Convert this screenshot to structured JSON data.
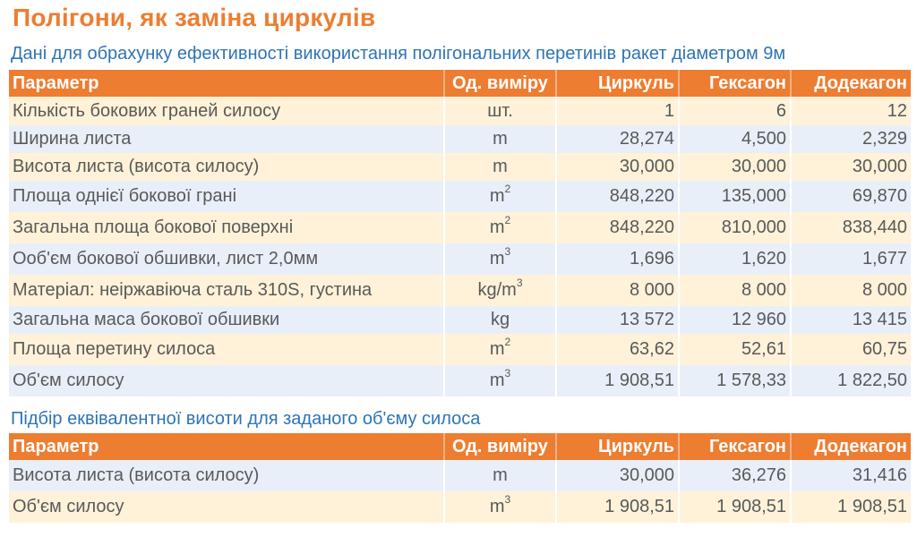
{
  "title": "Полігони, як заміна циркулів",
  "table1": {
    "subtitle": "Дані для обрахунку ефективності використання полігональних перетинів ракет діаметром 9м",
    "headers": [
      "Параметр",
      "Од. виміру",
      "Циркуль",
      "Гексагон",
      "Додекагон"
    ],
    "rows": [
      {
        "param": "Кількість бокових граней силосу",
        "unit": "шт.",
        "sup": "",
        "circle": "1",
        "hexagon": "6",
        "dodecagon": "12"
      },
      {
        "param": "Ширина листа",
        "unit": "m",
        "sup": "",
        "circle": "28,274",
        "hexagon": "4,500",
        "dodecagon": "2,329"
      },
      {
        "param": "Висота листа (висота силосу)",
        "unit": "m",
        "sup": "",
        "circle": "30,000",
        "hexagon": "30,000",
        "dodecagon": "30,000"
      },
      {
        "param": "Площа однієї бокової грані",
        "unit": "m",
        "sup": "2",
        "circle": "848,220",
        "hexagon": "135,000",
        "dodecagon": "69,870"
      },
      {
        "param": "Загальна площа бокової поверхні",
        "unit": "m",
        "sup": "2",
        "circle": "848,220",
        "hexagon": "810,000",
        "dodecagon": "838,440"
      },
      {
        "param": "Ооб'єм бокової обшивки, лист 2,0мм",
        "unit": "m",
        "sup": "3",
        "circle": "1,696",
        "hexagon": "1,620",
        "dodecagon": "1,677"
      },
      {
        "param": "Матеріал: неіржавіюча сталь 310S, густина",
        "unit": "kg/m",
        "sup": "3",
        "circle": "8 000",
        "hexagon": "8 000",
        "dodecagon": "8 000"
      },
      {
        "param": "Загальна маса бокової обшивки",
        "unit": "kg",
        "sup": "",
        "circle": "13 572",
        "hexagon": "12 960",
        "dodecagon": "13 415"
      },
      {
        "param": "Площа перетину силоса",
        "unit": "m",
        "sup": "2",
        "circle": "63,62",
        "hexagon": "52,61",
        "dodecagon": "60,75"
      },
      {
        "param": "Об'єм силосу",
        "unit": "m",
        "sup": "3",
        "circle": "1 908,51",
        "hexagon": "1 578,33",
        "dodecagon": "1 822,50"
      }
    ]
  },
  "table2": {
    "subtitle": "Підбір еквівалентної висоти для заданого об'єму силоса",
    "headers": [
      "Параметр",
      "Од. виміру",
      "Циркуль",
      "Гексагон",
      "Додекагон"
    ],
    "rows": [
      {
        "param": "Висота листа (висота силосу)",
        "unit": "m",
        "sup": "",
        "circle": "30,000",
        "hexagon": "36,276",
        "dodecagon": "31,416"
      },
      {
        "param": "Об'єм силосу",
        "unit": "m",
        "sup": "3",
        "circle": "1 908,51",
        "hexagon": "1 908,51",
        "dodecagon": "1 908,51"
      }
    ]
  },
  "colors": {
    "accent": "#ED7D31",
    "subtitle": "#2E74B5",
    "row_odd": "#FFF2D9",
    "row_even": "#E9EFF9",
    "text": "#595959"
  }
}
